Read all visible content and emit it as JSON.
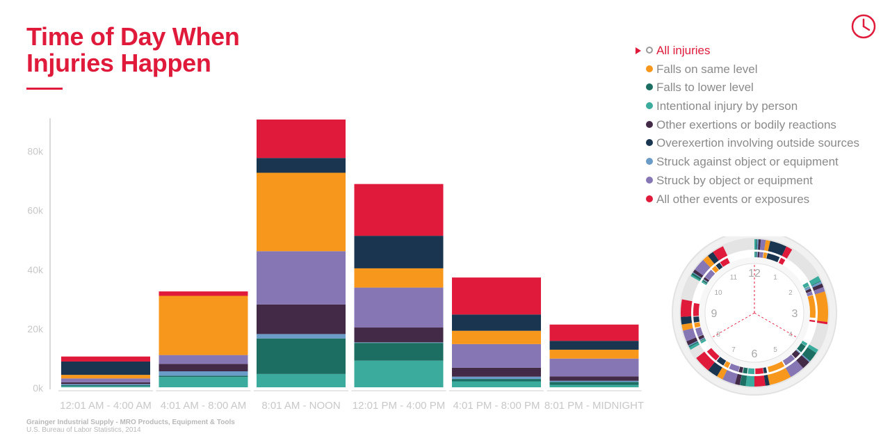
{
  "title_line1": "Time of Day When",
  "title_line2": "Injuries Happen",
  "legend": [
    {
      "label": "All injuries",
      "color": "#ffffff",
      "active": true
    },
    {
      "label": "Falls on same level",
      "color": "#f7981d"
    },
    {
      "label": "Falls to lower level",
      "color": "#1b6e61"
    },
    {
      "label": "Intentional injury by person",
      "color": "#3aab9c"
    },
    {
      "label": "Other exertions or bodily reactions",
      "color": "#432a47"
    },
    {
      "label": "Overexertion involving outside sources",
      "color": "#1a3550"
    },
    {
      "label": "Struck against object or equipment",
      "color": "#6b9bc7"
    },
    {
      "label": "Struck by object or equipment",
      "color": "#8677b4"
    },
    {
      "label": "All other events or exposures",
      "color": "#e01a3b"
    }
  ],
  "source_line1": "Grainger Industrial Supply - MRO Products, Equipment & Tools",
  "source_line2": "U.S. Bureau of Labor Statistics, 2014",
  "clock_icon": "clock-icon",
  "clock_numbers": [
    "12",
    "1",
    "2",
    "3",
    "4",
    "5",
    "6",
    "7",
    "8",
    "9",
    "10",
    "11"
  ],
  "chart_data": {
    "type": "bar",
    "stacked": true,
    "categories": [
      "12:01 AM - 4:00 AM",
      "4:01 AM - 8:00 AM",
      "8:01 AM - NOON",
      "12:01 PM - 4:00 PM",
      "4:01 PM - 8:00 PM",
      "8:01 PM - MIDNIGHT"
    ],
    "y_ticks": [
      "0k",
      "20k",
      "40k",
      "60k",
      "80k"
    ],
    "ylim": [
      0,
      90000
    ],
    "series": [
      {
        "name": "Intentional injury by person",
        "color": "#3aab9c",
        "values": [
          400,
          3500,
          4500,
          9000,
          2000,
          800
        ]
      },
      {
        "name": "Falls to lower level",
        "color": "#1b6e61",
        "values": [
          300,
          400,
          12000,
          6000,
          800,
          1000
        ]
      },
      {
        "name": "Struck against object or equipment",
        "color": "#6b9bc7",
        "values": [
          400,
          1500,
          1500,
          200,
          800,
          400
        ]
      },
      {
        "name": "Other exertions or bodily reactions",
        "color": "#432a47",
        "values": [
          600,
          2500,
          10000,
          5000,
          3000,
          1500
        ]
      },
      {
        "name": "Struck by object or equipment",
        "color": "#8677b4",
        "values": [
          1300,
          3000,
          18000,
          13500,
          8000,
          6000
        ]
      },
      {
        "name": "Falls on same level",
        "color": "#f7981d",
        "values": [
          1200,
          20000,
          26500,
          6500,
          4500,
          3000
        ]
      },
      {
        "name": "Overexertion involving outside sources",
        "color": "#1a3550",
        "values": [
          4500,
          0,
          5000,
          11000,
          5500,
          3000
        ]
      },
      {
        "name": "All other events or exposures",
        "color": "#e01a3b",
        "values": [
          1700,
          1500,
          13000,
          17500,
          12500,
          5500
        ]
      }
    ],
    "grid": false,
    "legend_position": "top-right"
  }
}
